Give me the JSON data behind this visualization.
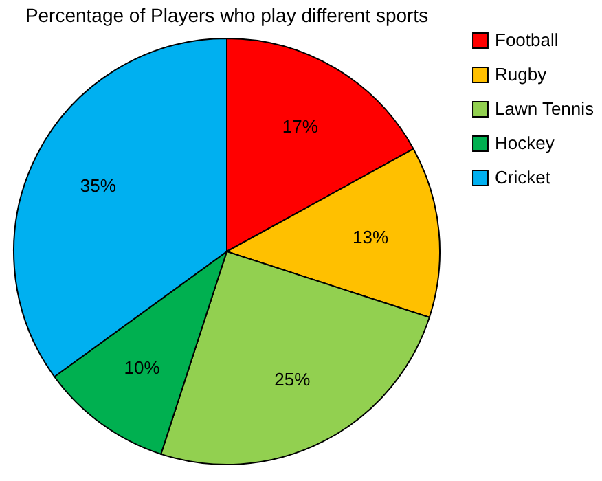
{
  "chart_data": {
    "type": "pie",
    "title": "Percentage of Players who play different sports",
    "categories": [
      "Football",
      "Rugby",
      "Lawn Tennis",
      "Hockey",
      "Cricket"
    ],
    "values": [
      17,
      13,
      25,
      10,
      35
    ],
    "colors": [
      "#ff0000",
      "#ffc000",
      "#92d050",
      "#00b050",
      "#00b0f0"
    ],
    "value_labels": [
      "17%",
      "13%",
      "25%",
      "10%",
      "35%"
    ],
    "legend": "right"
  }
}
